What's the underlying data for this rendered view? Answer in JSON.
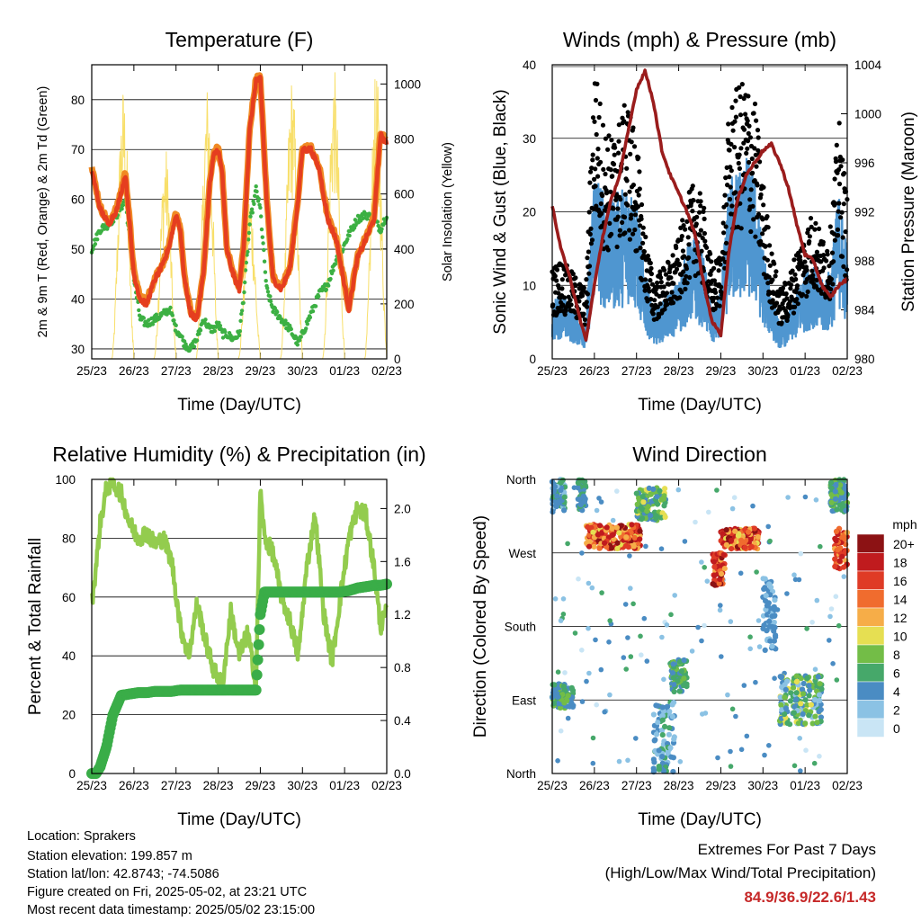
{
  "footer": {
    "location": "Location: Sprakers",
    "elevation": "Station elevation: 199.857 m",
    "latlon": "Station lat/lon: 42.8743; -74.5086",
    "created": "Figure created on Fri, 2025-05-02, at 23:21 UTC",
    "recent": "Most recent data timestamp: 2025/05/02 23:15:00"
  },
  "extremes": {
    "title": "Extremes For Past 7 Days",
    "subtitle": "(High/Low/Max Wind/Total Precipitation)",
    "values": "84.9/36.9/22.6/1.43"
  },
  "colors": {
    "temp2m": "#e53e1f",
    "temp9m": "#f08a24",
    "dewpoint": "#3cb043",
    "solar": "#f7dc5a",
    "wind": "#4f96d0",
    "gust": "#000000",
    "pressure": "#9a1c1c",
    "rh": "#93cc4e",
    "precip": "#3aad48",
    "speedscale": [
      "#c9e5f5",
      "#8bc2e4",
      "#4a8cc3",
      "#46a86a",
      "#73bd47",
      "#e6df52",
      "#f6ad48",
      "#f06c2e",
      "#df3b26",
      "#c01b1e",
      "#8c1214"
    ]
  },
  "chart_data": [
    {
      "id": "temperature",
      "type": "line",
      "title": "Temperature (F)",
      "xlabel": "Time (Day/UTC)",
      "ylabel": "2m & 9m T (Red, Orange) & 2m Td (Green)",
      "y2label": "Solar Insolation (Yellow)",
      "x_ticks": [
        "25/23",
        "26/23",
        "27/23",
        "28/23",
        "29/23",
        "30/23",
        "01/23",
        "02/23"
      ],
      "ylim": [
        28,
        87
      ],
      "yticks": [
        30,
        40,
        50,
        60,
        70,
        80
      ],
      "y2lim": [
        0,
        1070
      ],
      "y2ticks": [
        0,
        200,
        400,
        600,
        800,
        1000
      ],
      "x": [
        0,
        0.2,
        0.4,
        0.6,
        0.8,
        1.0,
        1.15,
        1.3,
        1.5,
        1.7,
        1.85,
        2.0,
        2.1,
        2.2,
        2.35,
        2.5,
        2.65,
        2.8,
        2.9,
        3.0,
        3.1,
        3.2,
        3.35,
        3.5,
        3.6,
        3.75,
        3.9,
        4.0,
        4.15,
        4.3,
        4.5,
        4.7,
        4.9,
        5.0,
        5.2,
        5.4,
        5.6,
        5.8,
        5.95,
        6.1,
        6.3,
        6.5,
        6.7,
        6.85,
        7.0
      ],
      "series": [
        {
          "name": "2m T",
          "values": [
            66,
            58,
            55,
            58,
            65,
            45,
            40,
            39,
            44,
            47,
            51,
            57,
            54,
            44,
            37,
            36,
            45,
            63,
            69,
            70,
            65,
            50,
            45,
            42,
            50,
            74,
            84,
            84,
            60,
            44,
            42,
            46,
            60,
            70,
            70,
            66,
            56,
            52,
            45,
            38,
            48,
            52,
            56,
            73,
            71
          ]
        },
        {
          "name": "9m T",
          "values": [
            66.4,
            58.4,
            55.4,
            58.4,
            65.4,
            45.4,
            40.4,
            39.4,
            44.4,
            47.4,
            51.4,
            57.4,
            54.4,
            44.4,
            37.4,
            36.4,
            45.4,
            63.4,
            69.4,
            70.4,
            65.4,
            50.4,
            45.4,
            42.4,
            50.4,
            74.4,
            84.4,
            84.4,
            60.4,
            44.4,
            42.4,
            46.4,
            60.4,
            70.4,
            70.4,
            66.4,
            56.4,
            52.4,
            45.4,
            38.4,
            48.4,
            52.4,
            56.4,
            73.4,
            71.4
          ]
        },
        {
          "name": "2m Td",
          "values": [
            50,
            54,
            55,
            57,
            60,
            44,
            36,
            35,
            36,
            37,
            38,
            34,
            33,
            31,
            30,
            32,
            36,
            34,
            34,
            35,
            33,
            33,
            32,
            33,
            40,
            55,
            62,
            58,
            42,
            38,
            36,
            34,
            31,
            33,
            37,
            41,
            43,
            48,
            50,
            53,
            56,
            57,
            56,
            54,
            57
          ]
        }
      ],
      "solar_series": {
        "name": "Solar Insolation",
        "peak_day_fraction": 0.75,
        "peaks": [
          1000,
          780,
          1010,
          620,
          1040,
          1060,
          1050
        ],
        "x_start": 0.35
      }
    },
    {
      "id": "winds",
      "type": "scatter",
      "title": "Winds (mph) & Pressure (mb)",
      "xlabel": "Time (Day/UTC)",
      "ylabel": "Sonic Wind & Gust (Blue, Black)",
      "y2label": "Station Pressure (Maroon)",
      "x_ticks": [
        "25/23",
        "26/23",
        "27/23",
        "28/23",
        "29/23",
        "30/23",
        "01/23",
        "02/23"
      ],
      "ylim": [
        0,
        40
      ],
      "yticks": [
        0,
        10,
        20,
        30,
        40
      ],
      "y2lim": [
        980,
        1004
      ],
      "y2ticks": [
        980,
        984,
        988,
        992,
        996,
        1000,
        1004
      ],
      "x": [
        0,
        0.2,
        0.4,
        0.6,
        0.8,
        1.0,
        1.2,
        1.4,
        1.6,
        1.8,
        2.0,
        2.2,
        2.4,
        2.6,
        2.8,
        3.0,
        3.2,
        3.4,
        3.6,
        3.8,
        4.0,
        4.2,
        4.4,
        4.6,
        4.8,
        5.0,
        5.2,
        5.4,
        5.6,
        5.8,
        6.0,
        6.2,
        6.4,
        6.6,
        6.8,
        7.0
      ],
      "series": [
        {
          "name": "Sonic Wind",
          "values": [
            5,
            6,
            5,
            4,
            3,
            18,
            15,
            14,
            15,
            16,
            14,
            8,
            4,
            5,
            6,
            7,
            10,
            11,
            9,
            4,
            6,
            16,
            17,
            18,
            16,
            10,
            6,
            3,
            4,
            6,
            8,
            9,
            7,
            8,
            15,
            10
          ]
        },
        {
          "name": "Gust",
          "values": [
            9,
            10,
            9,
            8,
            7,
            30,
            24,
            22,
            24,
            26,
            22,
            13,
            8,
            9,
            10,
            12,
            16,
            18,
            15,
            9,
            11,
            25,
            27,
            28,
            26,
            18,
            11,
            7,
            8,
            11,
            13,
            15,
            12,
            13,
            24,
            16
          ]
        },
        {
          "name": "Station Pressure",
          "values": [
            992.5,
            989,
            987,
            984,
            981.5,
            986,
            990,
            993,
            995,
            998.5,
            1002,
            1003.5,
            1001,
            997,
            995,
            993.5,
            992,
            990,
            986,
            983,
            982,
            989,
            993,
            995,
            996,
            997,
            997.5,
            996,
            994,
            991,
            988.5,
            988,
            986,
            985,
            986,
            986.5
          ]
        }
      ]
    },
    {
      "id": "humidity",
      "type": "line",
      "title": "Relative Humidity (%) & Precipitation (in)",
      "xlabel": "Time (Day/UTC)",
      "ylabel": "Percent & Total Rainfall",
      "x_ticks": [
        "25/23",
        "26/23",
        "27/23",
        "28/23",
        "29/23",
        "30/23",
        "01/23",
        "02/23"
      ],
      "ylim": [
        0,
        100
      ],
      "yticks": [
        0,
        20,
        40,
        60,
        80,
        100
      ],
      "y2lim": [
        0,
        2.22
      ],
      "y2ticks": [
        0.0,
        0.4,
        0.8,
        1.2,
        1.6,
        2.0
      ],
      "x": [
        0,
        0.1,
        0.2,
        0.35,
        0.5,
        0.7,
        0.9,
        1.1,
        1.3,
        1.5,
        1.7,
        1.9,
        2.1,
        2.3,
        2.5,
        2.7,
        2.9,
        3.1,
        3.3,
        3.5,
        3.7,
        3.9,
        4.0,
        4.1,
        4.3,
        4.5,
        4.7,
        4.9,
        5.1,
        5.3,
        5.5,
        5.7,
        5.9,
        6.1,
        6.3,
        6.5,
        6.7,
        6.85,
        7.0
      ],
      "series": [
        {
          "name": "Relative Humidity",
          "values": [
            58,
            70,
            85,
            97,
            99,
            95,
            85,
            80,
            82,
            78,
            80,
            72,
            50,
            40,
            58,
            45,
            35,
            30,
            55,
            40,
            48,
            30,
            96,
            80,
            75,
            60,
            52,
            40,
            70,
            88,
            55,
            38,
            60,
            80,
            90,
            88,
            70,
            50,
            55
          ]
        },
        {
          "name": "Total Precipitation",
          "values": [
            0,
            0.0,
            0.05,
            0.2,
            0.44,
            0.59,
            0.6,
            0.61,
            0.61,
            0.62,
            0.62,
            0.62,
            0.63,
            0.63,
            0.63,
            0.63,
            0.63,
            0.63,
            0.63,
            0.63,
            0.63,
            0.63,
            1.2,
            1.37,
            1.37,
            1.37,
            1.37,
            1.37,
            1.37,
            1.37,
            1.37,
            1.37,
            1.37,
            1.38,
            1.4,
            1.41,
            1.42,
            1.42,
            1.43
          ]
        }
      ]
    },
    {
      "id": "direction",
      "type": "scatter",
      "title": "Wind Direction",
      "xlabel": "Time (Day/UTC)",
      "ylabel": "Direction (Colored By Speed)",
      "x_ticks": [
        "25/23",
        "26/23",
        "27/23",
        "28/23",
        "29/23",
        "30/23",
        "01/23",
        "02/23"
      ],
      "ylim": [
        0,
        360
      ],
      "y_tick_labels": [
        "North",
        "East",
        "South",
        "West",
        "North"
      ],
      "legend_title": "mph",
      "legend_labels": [
        "0",
        "2",
        "4",
        "6",
        "8",
        "10",
        "12",
        "14",
        "16",
        "18",
        "20+"
      ],
      "clusters": [
        {
          "x": [
            0.0,
            0.3
          ],
          "dir": [
            320,
            360
          ],
          "speed": [
            2,
            6
          ]
        },
        {
          "x": [
            0.0,
            0.5
          ],
          "dir": [
            80,
            110
          ],
          "speed": [
            3,
            8
          ]
        },
        {
          "x": [
            0.6,
            0.8
          ],
          "dir": [
            320,
            360
          ],
          "speed": [
            3,
            6
          ]
        },
        {
          "x": [
            0.8,
            2.1
          ],
          "dir": [
            275,
            305
          ],
          "speed": [
            10,
            20
          ]
        },
        {
          "x": [
            2.0,
            2.7
          ],
          "dir": [
            310,
            350
          ],
          "speed": [
            4,
            10
          ]
        },
        {
          "x": [
            2.4,
            2.9
          ],
          "dir": [
            0,
            90
          ],
          "speed": [
            1,
            6
          ]
        },
        {
          "x": [
            2.8,
            3.2
          ],
          "dir": [
            100,
            140
          ],
          "speed": [
            4,
            8
          ]
        },
        {
          "x": [
            3.8,
            4.1
          ],
          "dir": [
            230,
            270
          ],
          "speed": [
            12,
            20
          ]
        },
        {
          "x": [
            4.0,
            4.9
          ],
          "dir": [
            275,
            300
          ],
          "speed": [
            10,
            20
          ]
        },
        {
          "x": [
            5.0,
            5.3
          ],
          "dir": [
            150,
            240
          ],
          "speed": [
            2,
            5
          ]
        },
        {
          "x": [
            5.4,
            6.4
          ],
          "dir": [
            60,
            120
          ],
          "speed": [
            2,
            10
          ]
        },
        {
          "x": [
            6.7,
            7.0
          ],
          "dir": [
            250,
            300
          ],
          "speed": [
            12,
            18
          ]
        },
        {
          "x": [
            6.6,
            7.0
          ],
          "dir": [
            320,
            360
          ],
          "speed": [
            3,
            8
          ]
        }
      ]
    }
  ]
}
